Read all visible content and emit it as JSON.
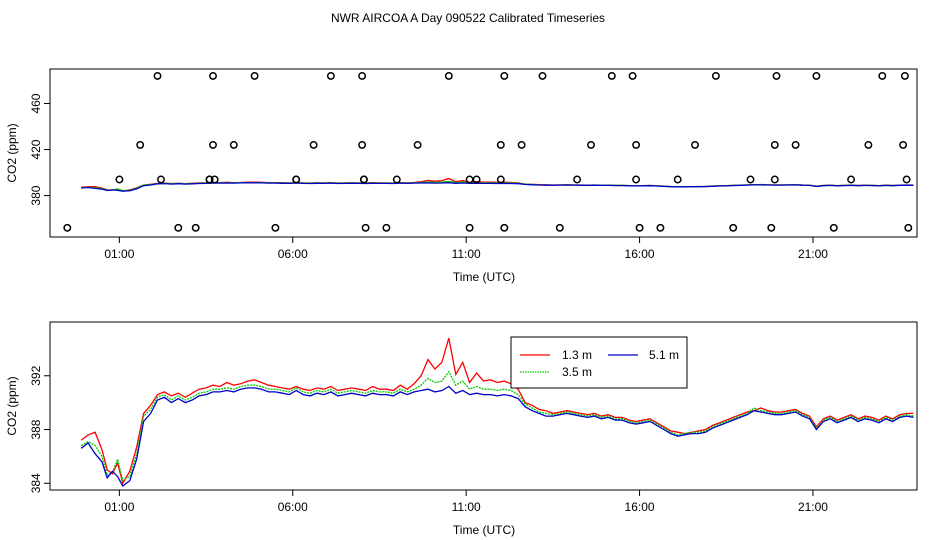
{
  "title": "NWR AIRCOA A  Day 090522  Calibrated Timeseries",
  "chart_data": [
    {
      "type": "scatter+line",
      "ylabel": "CO2 (ppm)",
      "xlabel": "Time (UTC)",
      "xlim": [
        -1.0,
        24.0
      ],
      "ylim": [
        344,
        490
      ],
      "x_ticks": [
        1,
        6,
        11,
        16,
        21
      ],
      "x_tick_labels": [
        "01:00",
        "06:00",
        "11:00",
        "16:00",
        "21:00"
      ],
      "y_ticks": [
        380,
        420,
        460
      ],
      "y_tick_labels": [
        "380",
        "420",
        "460"
      ],
      "calibration_points": {
        "x": [
          -0.5,
          1.0,
          1.6,
          2.1,
          2.2,
          2.7,
          3.2,
          3.6,
          3.6,
          3.7,
          3.7,
          3.75,
          4.3,
          4.9,
          5.5,
          6.1,
          6.1,
          6.6,
          7.1,
          8.0,
          8.0,
          8.05,
          8.05,
          8.1,
          8.7,
          9.0,
          9.6,
          10.5,
          11.1,
          11.1,
          11.3,
          12.0,
          12.0,
          12.1,
          12.1,
          12.6,
          13.2,
          13.7,
          14.2,
          14.6,
          15.2,
          15.8,
          15.9,
          15.9,
          16.0,
          16.6,
          17.1,
          17.6,
          18.2,
          18.7,
          19.2,
          19.8,
          19.9,
          19.9,
          19.95,
          20.5,
          21.1,
          21.6,
          22.1,
          22.6,
          23.0,
          23.6,
          23.65,
          23.7,
          23.75
        ]
      },
      "calibration_levels": {
        "y": [
          352,
          394,
          424,
          484,
          394,
          352,
          352,
          394,
          394,
          424,
          484,
          394,
          424,
          484,
          352,
          394,
          394,
          424,
          484,
          424,
          484,
          394,
          394,
          352,
          352,
          394,
          424,
          484,
          352,
          394,
          394,
          394,
          424,
          484,
          352,
          424,
          484,
          352,
          394,
          424,
          484,
          484,
          424,
          394,
          352,
          352,
          394,
          424,
          484,
          352,
          394,
          352,
          394,
          424,
          484,
          424,
          484,
          352,
          394,
          424,
          484,
          424,
          484,
          394,
          352
        ]
      },
      "series": [
        {
          "name": "1.3 m",
          "color": "#ff0000"
        },
        {
          "name": "3.5 m",
          "color": "#00cc00"
        },
        {
          "name": "5.1 m",
          "color": "#0000cc"
        }
      ],
      "ambient_lines_source": "same CO2 series as lower panel (ppm), compressed on this axis"
    },
    {
      "type": "line",
      "ylabel": "CO2 (ppm)",
      "xlabel": "Time (UTC)",
      "xlim": [
        -1.0,
        24.0
      ],
      "ylim": [
        383.5,
        396.0
      ],
      "x_ticks": [
        1,
        6,
        11,
        16,
        21
      ],
      "x_tick_labels": [
        "01:00",
        "06:00",
        "11:00",
        "16:00",
        "21:00"
      ],
      "y_ticks": [
        384,
        388,
        392
      ],
      "y_tick_labels": [
        "384",
        "388",
        "392"
      ],
      "legend": {
        "position": "top-center-right",
        "entries": [
          "1.3 m",
          "5.1 m",
          "3.5 m"
        ]
      },
      "x": [
        -0.1,
        0.1,
        0.3,
        0.5,
        0.65,
        0.8,
        0.95,
        1.1,
        1.3,
        1.5,
        1.7,
        1.9,
        2.1,
        2.3,
        2.5,
        2.7,
        2.9,
        3.1,
        3.3,
        3.5,
        3.7,
        3.9,
        4.1,
        4.3,
        4.5,
        4.7,
        4.9,
        5.1,
        5.3,
        5.5,
        5.7,
        5.9,
        6.1,
        6.3,
        6.5,
        6.7,
        6.9,
        7.1,
        7.3,
        7.5,
        7.7,
        7.9,
        8.1,
        8.3,
        8.5,
        8.7,
        8.9,
        9.1,
        9.3,
        9.5,
        9.7,
        9.9,
        10.1,
        10.3,
        10.5,
        10.7,
        10.9,
        11.1,
        11.3,
        11.5,
        11.7,
        11.9,
        12.1,
        12.3,
        12.5,
        12.7,
        12.9,
        13.1,
        13.3,
        13.5,
        13.7,
        13.9,
        14.1,
        14.3,
        14.5,
        14.7,
        14.9,
        15.1,
        15.3,
        15.5,
        15.7,
        15.9,
        16.1,
        16.3,
        16.5,
        16.7,
        16.9,
        17.1,
        17.3,
        17.5,
        17.7,
        17.9,
        18.1,
        18.3,
        18.5,
        18.7,
        18.9,
        19.1,
        19.3,
        19.5,
        19.7,
        19.9,
        20.1,
        20.3,
        20.5,
        20.7,
        20.9,
        21.1,
        21.3,
        21.5,
        21.7,
        21.9,
        22.1,
        22.3,
        22.5,
        22.7,
        22.9,
        23.1,
        23.3,
        23.5,
        23.7,
        23.9
      ],
      "series_values": {
        "1.3 m": [
          387.2,
          387.6,
          387.8,
          386.5,
          385.0,
          384.7,
          385.5,
          384.0,
          384.9,
          386.7,
          389.2,
          389.8,
          390.6,
          390.8,
          390.5,
          390.7,
          390.4,
          390.7,
          391.0,
          391.1,
          391.3,
          391.2,
          391.5,
          391.3,
          391.4,
          391.6,
          391.7,
          391.5,
          391.3,
          391.2,
          391.1,
          391.0,
          391.2,
          391.0,
          390.9,
          391.1,
          391.0,
          391.2,
          390.9,
          391.0,
          391.1,
          391.0,
          390.9,
          391.2,
          391.0,
          391.0,
          390.9,
          391.3,
          391.0,
          391.4,
          392.0,
          393.2,
          392.5,
          393.0,
          394.8,
          392.1,
          393.0,
          391.5,
          392.2,
          391.6,
          391.7,
          391.5,
          391.6,
          391.4,
          391.0,
          390.0,
          389.8,
          389.5,
          389.4,
          389.2,
          389.3,
          389.4,
          389.3,
          389.2,
          389.1,
          389.2,
          389.0,
          389.1,
          388.9,
          388.9,
          388.7,
          388.6,
          388.7,
          388.8,
          388.5,
          388.2,
          387.9,
          387.8,
          387.7,
          387.8,
          387.9,
          388.0,
          388.3,
          388.5,
          388.7,
          388.9,
          389.1,
          389.3,
          389.4,
          389.6,
          389.4,
          389.3,
          389.3,
          389.4,
          389.5,
          389.2,
          389.0,
          388.2,
          388.8,
          389.0,
          388.7,
          388.9,
          389.1,
          388.8,
          389.0,
          388.9,
          388.7,
          389.0,
          388.8,
          389.1,
          389.2,
          389.2
        ],
        "3.5 m": [
          386.8,
          387.1,
          386.8,
          386.0,
          384.6,
          384.8,
          385.8,
          384.2,
          384.5,
          386.2,
          389.0,
          389.5,
          390.4,
          390.6,
          390.2,
          390.5,
          390.2,
          390.4,
          390.7,
          390.8,
          391.0,
          391.0,
          391.1,
          391.0,
          391.2,
          391.3,
          391.3,
          391.2,
          391.0,
          391.0,
          390.9,
          390.8,
          391.1,
          390.8,
          390.7,
          390.9,
          390.8,
          391.0,
          390.7,
          390.8,
          390.9,
          390.8,
          390.7,
          390.9,
          390.8,
          390.8,
          390.7,
          391.0,
          390.8,
          391.0,
          391.3,
          391.8,
          391.5,
          391.6,
          392.3,
          391.3,
          391.6,
          391.0,
          391.2,
          391.0,
          391.0,
          390.9,
          391.0,
          390.9,
          390.6,
          389.9,
          389.6,
          389.3,
          389.2,
          389.1,
          389.2,
          389.3,
          389.2,
          389.1,
          389.0,
          389.1,
          388.9,
          389.0,
          388.8,
          388.8,
          388.6,
          388.5,
          388.6,
          388.7,
          388.4,
          388.1,
          387.8,
          387.6,
          387.7,
          387.8,
          387.8,
          387.9,
          388.2,
          388.4,
          388.6,
          388.8,
          389.0,
          389.2,
          389.6,
          389.4,
          389.3,
          389.2,
          389.2,
          389.3,
          389.4,
          389.1,
          388.9,
          388.1,
          388.7,
          388.9,
          388.6,
          388.8,
          389.0,
          388.7,
          388.9,
          388.8,
          388.6,
          388.9,
          388.7,
          389.0,
          389.1,
          389.0
        ],
        "5.1 m": [
          386.6,
          387.0,
          386.2,
          385.6,
          384.4,
          384.9,
          384.5,
          383.8,
          384.2,
          385.8,
          388.6,
          389.2,
          390.2,
          390.4,
          390.0,
          390.3,
          390.0,
          390.2,
          390.5,
          390.6,
          390.8,
          390.8,
          390.9,
          390.8,
          391.0,
          391.1,
          391.1,
          391.0,
          390.8,
          390.8,
          390.7,
          390.6,
          390.9,
          390.6,
          390.5,
          390.7,
          390.6,
          390.8,
          390.5,
          390.6,
          390.7,
          390.6,
          390.5,
          390.7,
          390.6,
          390.6,
          390.5,
          390.8,
          390.6,
          390.8,
          390.9,
          391.0,
          390.8,
          390.9,
          391.2,
          390.7,
          390.9,
          390.6,
          390.7,
          390.6,
          390.6,
          390.5,
          390.6,
          390.5,
          390.3,
          389.7,
          389.4,
          389.2,
          389.0,
          389.0,
          389.1,
          389.2,
          389.1,
          389.0,
          388.9,
          389.0,
          388.8,
          388.9,
          388.7,
          388.7,
          388.5,
          388.4,
          388.5,
          388.6,
          388.3,
          388.0,
          387.7,
          387.5,
          387.6,
          387.7,
          387.7,
          387.8,
          388.1,
          388.3,
          388.5,
          388.7,
          388.9,
          389.1,
          389.4,
          389.3,
          389.2,
          389.1,
          389.1,
          389.2,
          389.3,
          389.0,
          388.8,
          388.0,
          388.6,
          388.8,
          388.5,
          388.7,
          388.9,
          388.6,
          388.8,
          388.7,
          388.5,
          388.8,
          388.6,
          388.9,
          389.0,
          388.9
        ]
      }
    }
  ]
}
